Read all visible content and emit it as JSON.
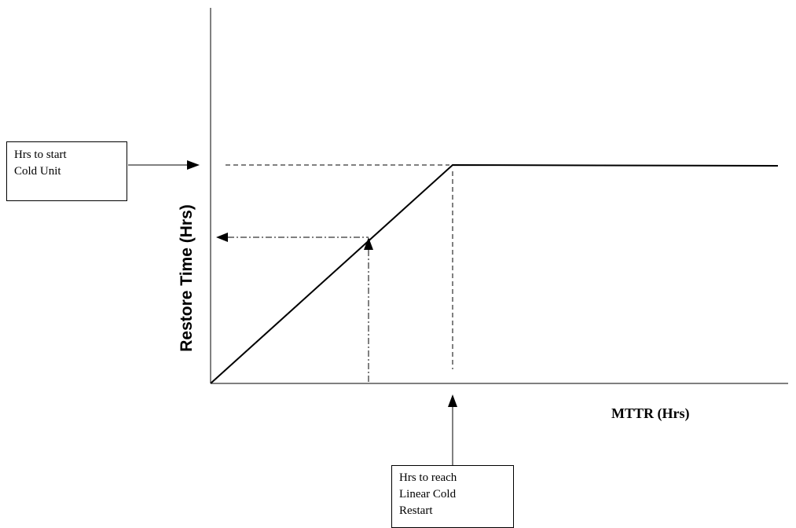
{
  "axes": {
    "y_label": "Restore Time (Hrs)",
    "x_label": "MTTR (Hrs)"
  },
  "callouts": {
    "cold_unit": {
      "lines": [
        "Hrs to start",
        "Cold Unit"
      ]
    },
    "linear_restart": {
      "lines": [
        "Hrs to reach",
        "Linear Cold",
        "Restart"
      ]
    }
  },
  "colors": {
    "line": "#000000",
    "background": "#ffffff"
  }
}
